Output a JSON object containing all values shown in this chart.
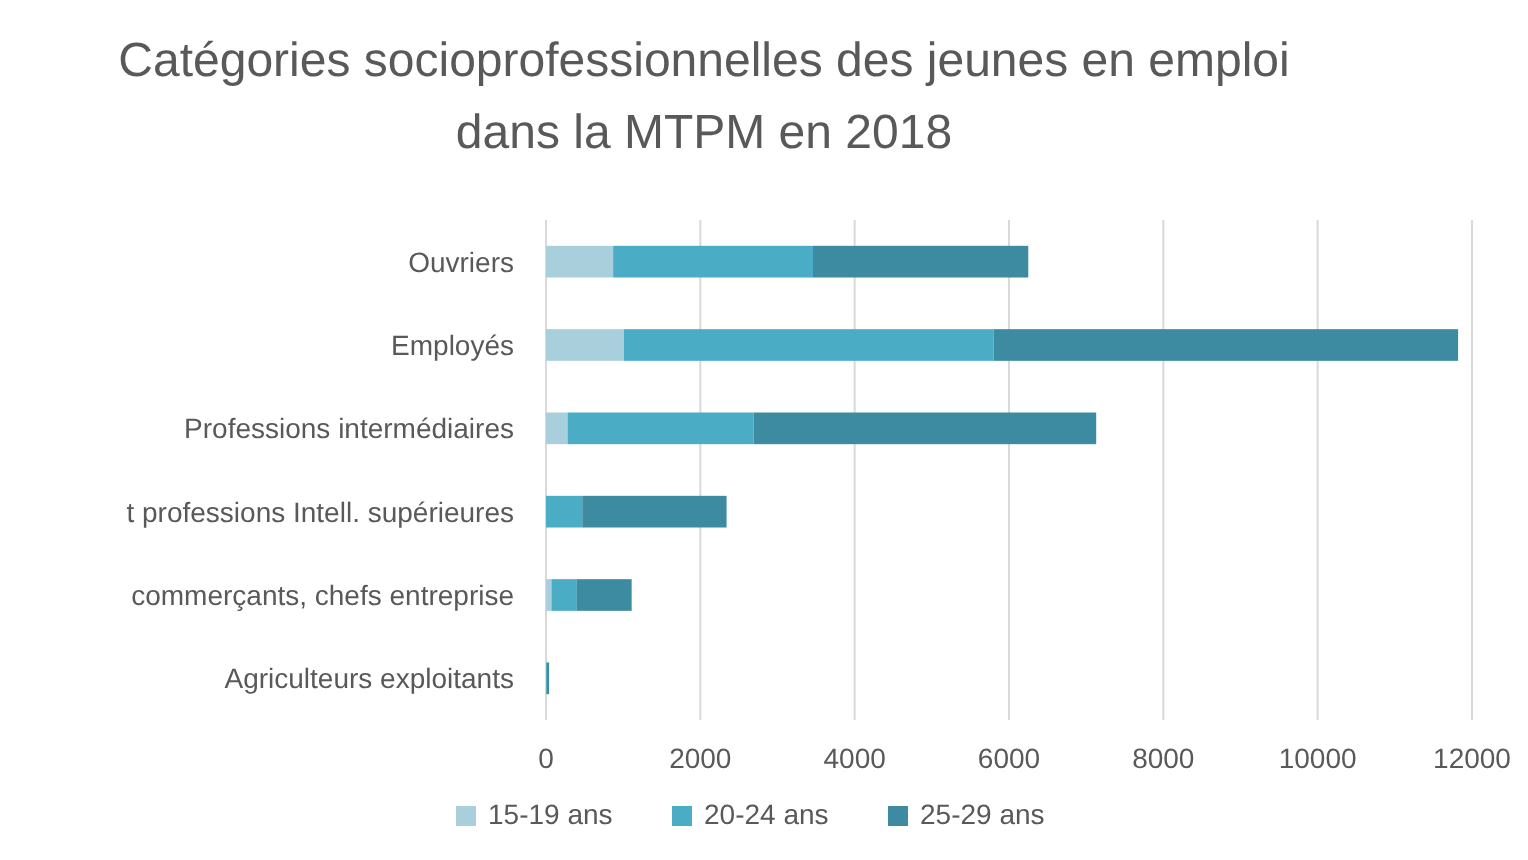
{
  "chart_data": {
    "type": "bar",
    "orientation": "horizontal",
    "stacked": true,
    "title": "Catégories socioprofessionnelles des jeunes en emploi dans la MTPM en 2018",
    "categories": [
      "Ouvriers",
      "Employés",
      "Professions intermédiaires",
      "t professions Intell. supérieures",
      "commerçants, chefs entreprise",
      "Agriculteurs exploitants"
    ],
    "series": [
      {
        "name": "15-19 ans",
        "color": "#a9cfdc",
        "values": [
          870,
          1010,
          280,
          null,
          70,
          null
        ]
      },
      {
        "name": "20-24 ans",
        "color": "#4bacc6",
        "values": [
          2590,
          4790,
          2410,
          470,
          330,
          10
        ]
      },
      {
        "name": "25-29 ans",
        "color": "#3c8ba1",
        "values": [
          2790,
          6020,
          4440,
          1870,
          710,
          30
        ]
      }
    ],
    "xlim": [
      0,
      12000
    ],
    "xticks": [
      0,
      2000,
      4000,
      6000,
      8000,
      10000,
      12000
    ],
    "grid": "x",
    "legend": "bottom"
  }
}
